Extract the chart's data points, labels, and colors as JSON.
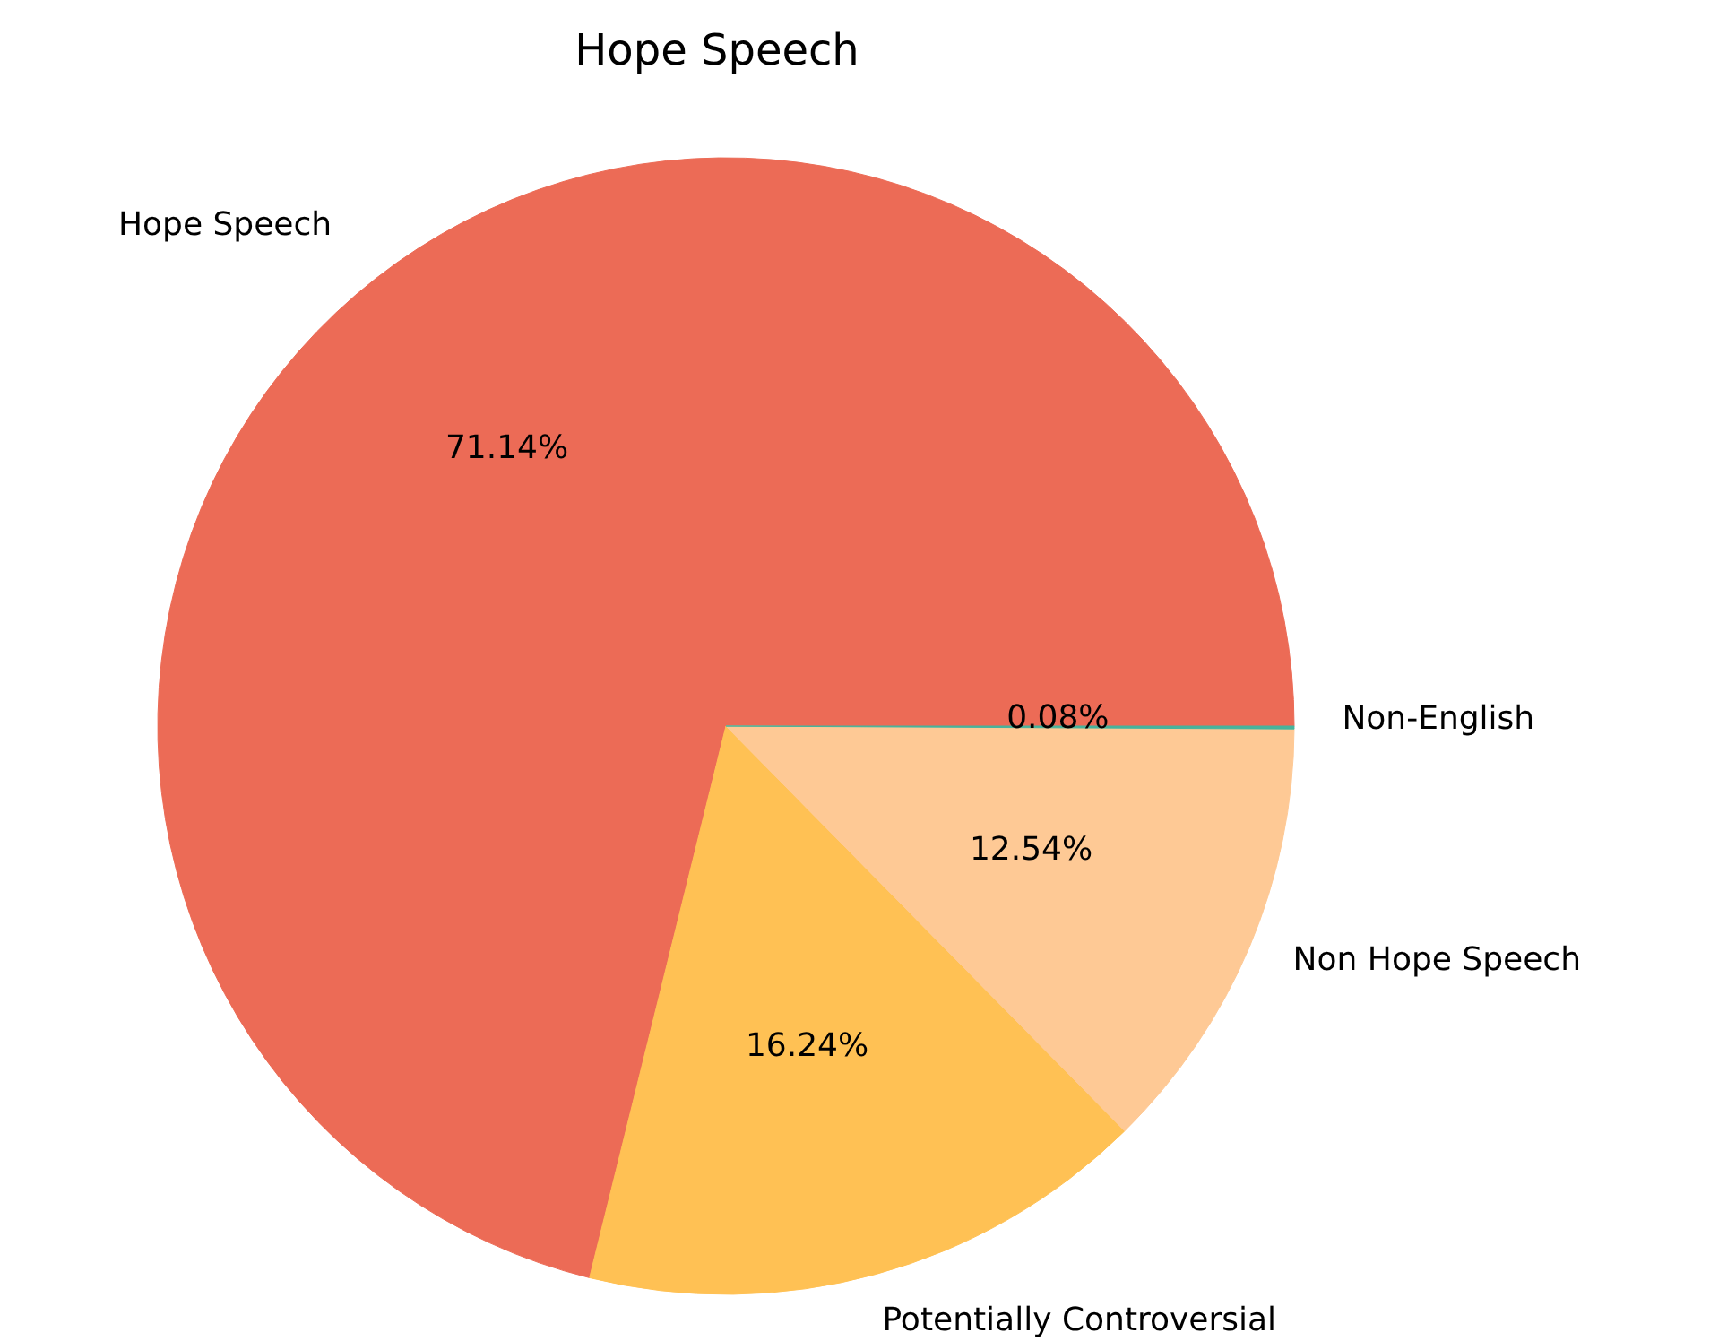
{
  "chart_data": {
    "type": "pie",
    "title": "Hope Speech",
    "categories": [
      "Hope Speech",
      "Potentially Controversial",
      "Non Hope Speech",
      "Non-English"
    ],
    "values": [
      71.14,
      16.24,
      12.54,
      0.08
    ],
    "colors": [
      "#ec6b56",
      "#ffc154",
      "#fec995",
      "#47b39c"
    ],
    "value_labels": [
      "71.14%",
      "16.24%",
      "12.54%",
      "0.08%"
    ],
    "legend": false
  }
}
